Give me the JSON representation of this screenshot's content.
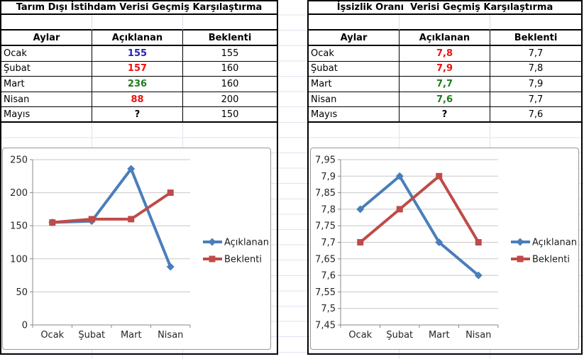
{
  "panels": [
    {
      "title": "Tarım Dışı İstihdam Verisi Geçmiş Karşılaştırma",
      "columns": [
        "Aylar",
        "Açıklanan",
        "Beklenti"
      ],
      "rows": [
        {
          "month": "Ocak",
          "announced": "155",
          "announced_color": "#2222bb",
          "expected": "155"
        },
        {
          "month": "Şubat",
          "announced": "157",
          "announced_color": "#ee1111",
          "expected": "160"
        },
        {
          "month": "Mart",
          "announced": "236",
          "announced_color": "#1e7b1e",
          "expected": "160"
        },
        {
          "month": "Nisan",
          "announced": "88",
          "announced_color": "#ee1111",
          "expected": "200"
        },
        {
          "month": "Mayıs",
          "announced": "?",
          "announced_color": "#000000",
          "expected": "150"
        }
      ],
      "chart_data": {
        "type": "line",
        "categories": [
          "Ocak",
          "Şubat",
          "Mart",
          "Nisan"
        ],
        "series": [
          {
            "name": "Açıklanan",
            "values": [
              155,
              157,
              236,
              88
            ],
            "color": "#4a7ebb",
            "marker": "diamond"
          },
          {
            "name": "Beklenti",
            "values": [
              155,
              160,
              160,
              200
            ],
            "color": "#bf4b48",
            "marker": "square"
          }
        ],
        "title": "",
        "xlabel": "",
        "ylabel": "",
        "ylim": [
          0,
          250
        ],
        "ytick_labels": [
          "0",
          "50",
          "100",
          "150",
          "200",
          "250"
        ],
        "grid": true,
        "legend_position": "right"
      }
    },
    {
      "title": "İşsizlik Oranı  Verisi Geçmiş Karşılaştırma",
      "columns": [
        "Aylar",
        "Açıklanan",
        "Beklenti"
      ],
      "rows": [
        {
          "month": "Ocak",
          "announced": "7,8",
          "announced_color": "#ee1111",
          "expected": "7,7"
        },
        {
          "month": "Şubat",
          "announced": "7,9",
          "announced_color": "#ee1111",
          "expected": "7,8"
        },
        {
          "month": "Mart",
          "announced": "7,7",
          "announced_color": "#1e7b1e",
          "expected": "7,9"
        },
        {
          "month": "Nisan",
          "announced": "7,6",
          "announced_color": "#1e7b1e",
          "expected": "7,7"
        },
        {
          "month": "Mayıs",
          "announced": "?",
          "announced_color": "#000000",
          "expected": "7,6"
        }
      ],
      "chart_data": {
        "type": "line",
        "categories": [
          "Ocak",
          "Şubat",
          "Mart",
          "Nisan"
        ],
        "series": [
          {
            "name": "Açıklanan",
            "values": [
              7.8,
              7.9,
              7.7,
              7.6
            ],
            "color": "#4a7ebb",
            "marker": "diamond"
          },
          {
            "name": "Beklenti",
            "values": [
              7.7,
              7.8,
              7.9,
              7.7
            ],
            "color": "#bf4b48",
            "marker": "square"
          }
        ],
        "title": "",
        "xlabel": "",
        "ylabel": "",
        "ylim": [
          7.45,
          7.95
        ],
        "ytick_labels": [
          "7,45",
          "7,5",
          "7,55",
          "7,6",
          "7,65",
          "7,7",
          "7,75",
          "7,8",
          "7,85",
          "7,9",
          "7,95"
        ],
        "grid": true,
        "legend_position": "right"
      }
    }
  ]
}
